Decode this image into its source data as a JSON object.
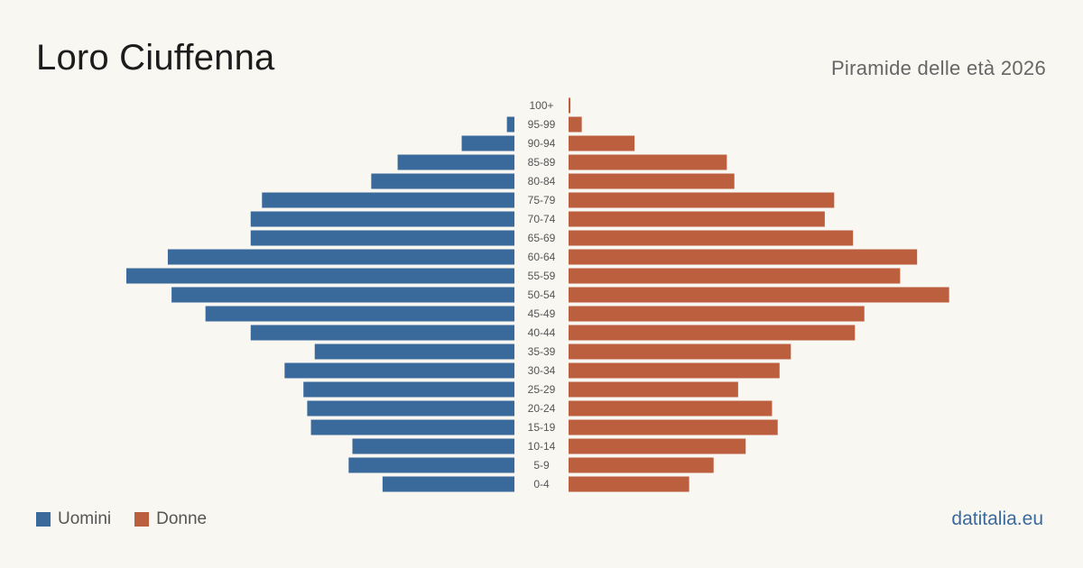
{
  "title": "Loro Ciuffenna",
  "subtitle": "Piramide delle età 2026",
  "brand": "datitalia.eu",
  "colors": {
    "men": "#3a6a9b",
    "women": "#bb5f3f",
    "background": "#f9f7f2"
  },
  "legend": [
    {
      "label": "Uomini",
      "color": "#3a6a9b"
    },
    {
      "label": "Donne",
      "color": "#bb5f3f"
    }
  ],
  "chart_data": {
    "type": "bar",
    "orientation": "horizontal-pyramid",
    "categories": [
      "100+",
      "95-99",
      "90-94",
      "85-89",
      "80-84",
      "75-79",
      "70-74",
      "65-69",
      "60-64",
      "55-59",
      "50-54",
      "45-49",
      "40-44",
      "35-39",
      "30-34",
      "25-29",
      "20-24",
      "15-19",
      "10-14",
      "5-9",
      "0-4"
    ],
    "series": [
      {
        "name": "Uomini",
        "values": [
          0,
          2,
          14,
          31,
          38,
          67,
          70,
          70,
          92,
          103,
          91,
          82,
          70,
          53,
          61,
          56,
          55,
          54,
          43,
          44,
          35
        ]
      },
      {
        "name": "Donne",
        "values": [
          0.5,
          3.5,
          17.5,
          42,
          44,
          70.5,
          68,
          75.5,
          92.5,
          88,
          101,
          78.5,
          76,
          59,
          56,
          45,
          54,
          55.5,
          47,
          38.5,
          32
        ]
      }
    ],
    "xlim": [
      0,
      103
    ],
    "legend_position": "bottom-left",
    "grid": false
  }
}
